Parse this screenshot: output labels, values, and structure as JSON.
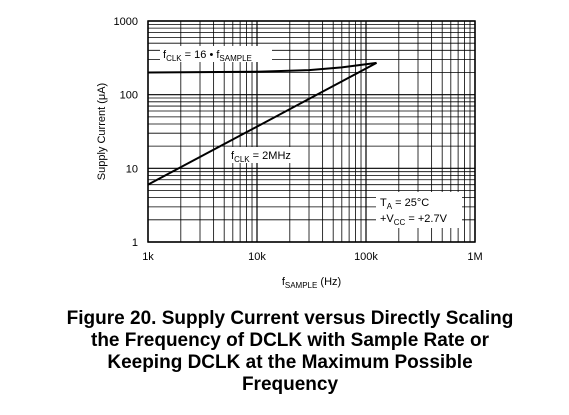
{
  "chart_data": {
    "type": "line",
    "log_x": true,
    "log_y": true,
    "grid": true,
    "xlim": [
      1000,
      1000000
    ],
    "ylim": [
      1,
      1000
    ],
    "xticks": [
      {
        "value": 1000,
        "label": "1k"
      },
      {
        "value": 10000,
        "label": "10k"
      },
      {
        "value": 100000,
        "label": "100k"
      },
      {
        "value": 1000000,
        "label": "1M"
      }
    ],
    "yticks": [
      1,
      10,
      100,
      1000
    ],
    "xminor": [
      2000,
      3000,
      4000,
      5000,
      6000,
      7000,
      8000,
      9000,
      20000,
      30000,
      40000,
      50000,
      60000,
      70000,
      80000,
      90000,
      200000,
      300000,
      400000,
      500000,
      600000,
      700000,
      800000,
      900000
    ],
    "yminor": [
      2,
      3,
      4,
      5,
      6,
      7,
      8,
      9,
      20,
      30,
      40,
      50,
      60,
      70,
      80,
      90,
      200,
      300,
      400,
      500,
      600,
      700,
      800,
      900
    ],
    "ylabel": "Supply Current (μA)",
    "xlabel_parts": [
      {
        "text": "f"
      },
      {
        "text": "SAMPLE",
        "sub": true
      },
      {
        "text": " (Hz)"
      }
    ],
    "series": [
      {
        "color": "#000000",
        "name_parts": [
          {
            "text": "f"
          },
          {
            "text": "CLK",
            "sub": true
          },
          {
            "text": " = 16 • f"
          },
          {
            "text": "SAMPLE",
            "sub": true
          }
        ],
        "x": [
          1000,
          10000,
          30000,
          60000,
          125000
        ],
        "values": [
          200,
          205,
          215,
          235,
          270
        ]
      },
      {
        "color": "#000000",
        "name_parts": [
          {
            "text": "f"
          },
          {
            "text": "CLK",
            "sub": true
          },
          {
            "text": " = 2MHz"
          }
        ],
        "x": [
          1000,
          125000
        ],
        "values": [
          6,
          270
        ]
      }
    ],
    "conditions": [
      [
        {
          "text": "T"
        },
        {
          "text": "A",
          "sub": true
        },
        {
          "text": " = 25°C"
        }
      ],
      [
        {
          "text": "+V"
        },
        {
          "text": "CC",
          "sub": true
        },
        {
          "text": " = +2.7V"
        }
      ]
    ],
    "caption": [
      "Figure 20.  Supply Current versus Directly Scaling",
      "the Frequency of DCLK with Sample Rate or",
      "Keeping DCLK at the Maximum Possible",
      "Frequency"
    ]
  }
}
